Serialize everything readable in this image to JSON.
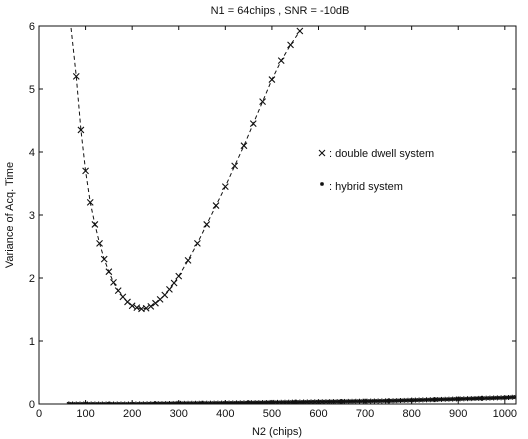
{
  "chart_data": {
    "type": "line",
    "title": "N1 = 64chips , SNR = -10dB",
    "xlabel": "N2 (chips)",
    "ylabel": "Variance of Acq. Time",
    "xlim": [
      0,
      1024
    ],
    "ylim": [
      0,
      6
    ],
    "xticks": [
      0,
      100,
      200,
      300,
      400,
      500,
      600,
      700,
      800,
      900,
      1000
    ],
    "yticks": [
      0,
      1,
      2,
      3,
      4,
      5,
      6
    ],
    "grid": false,
    "series": [
      {
        "name": "double dwell system",
        "marker": "x",
        "line": "dashed",
        "x": [
          64,
          80,
          90,
          100,
          110,
          120,
          130,
          140,
          150,
          160,
          170,
          180,
          190,
          200,
          210,
          220,
          230,
          240,
          250,
          260,
          270,
          280,
          290,
          300,
          320,
          340,
          360,
          380,
          400,
          420,
          440,
          460,
          480,
          500,
          520,
          540,
          560
        ],
        "y": [
          6.3,
          5.2,
          4.35,
          3.7,
          3.2,
          2.85,
          2.55,
          2.3,
          2.1,
          1.93,
          1.8,
          1.7,
          1.62,
          1.56,
          1.53,
          1.51,
          1.52,
          1.55,
          1.6,
          1.66,
          1.73,
          1.82,
          1.92,
          2.03,
          2.28,
          2.55,
          2.85,
          3.15,
          3.45,
          3.78,
          4.1,
          4.45,
          4.8,
          5.15,
          5.45,
          5.7,
          5.92
        ]
      },
      {
        "name": "hybrid system",
        "marker": "*",
        "line": "solid",
        "x": [
          64,
          100,
          150,
          200,
          250,
          300,
          350,
          400,
          450,
          500,
          550,
          600,
          650,
          700,
          750,
          800,
          850,
          900,
          950,
          1000,
          1024
        ],
        "y": [
          0.0,
          0.0,
          0.0,
          0.0,
          0.005,
          0.01,
          0.012,
          0.015,
          0.02,
          0.025,
          0.03,
          0.035,
          0.04,
          0.045,
          0.05,
          0.06,
          0.07,
          0.08,
          0.09,
          0.1,
          0.11
        ]
      }
    ],
    "annotations": [
      {
        "marker": "x",
        "text": ": double dwell system"
      },
      {
        "marker": "*",
        "text": ": hybrid system"
      }
    ]
  }
}
